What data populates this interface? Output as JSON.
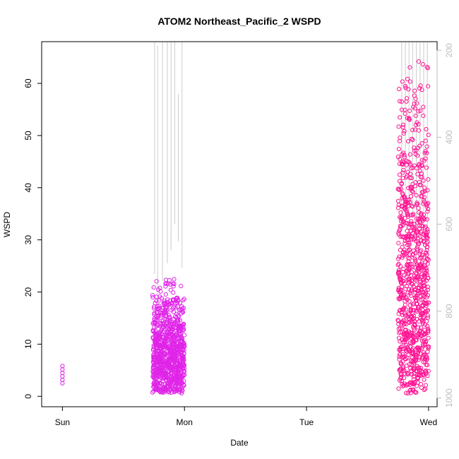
{
  "chart_data": {
    "type": "scatter",
    "title": "ATOM2 Northeast_Pacific_2 WSPD",
    "xlabel": "Date",
    "ylabel": "WSPD",
    "x_ticks": [
      "Sun",
      "Mon",
      "Tue",
      "Wed"
    ],
    "x_tick_values_days": [
      0,
      1,
      2,
      3
    ],
    "xlim_days": [
      -0.17,
      3.07
    ],
    "y_ticks": [
      0,
      10,
      20,
      30,
      40,
      50,
      60
    ],
    "ylim": [
      -2,
      68
    ],
    "right_axis": {
      "label": "",
      "ticks": [
        200,
        400,
        600,
        800,
        1000
      ],
      "lim": [
        1020,
        180
      ],
      "reversed": true,
      "color": "#bdbdbd"
    },
    "grid": false,
    "legend": "none",
    "series": [
      {
        "name": "",
        "color": "#e024e8",
        "marker": "open-circle",
        "clusters": [
          {
            "x_day": 0.0,
            "y_min": 2.5,
            "y_max": 5.8
          },
          {
            "x_day_range": [
              0.74,
              1.0
            ],
            "y_min": 0.6,
            "y_max": 23.5
          }
        ]
      },
      {
        "name": "",
        "color": "#ff1493",
        "marker": "open-circle",
        "clusters": [
          {
            "x_day_range": [
              2.75,
              3.0
            ],
            "y_min": 0.6,
            "y_max": 65.5
          }
        ]
      },
      {
        "name": "",
        "color": "#cccccc",
        "marker": "line",
        "axis": "right",
        "segments": [
          {
            "x_day": 0.755,
            "top": 170,
            "bottom": 715
          },
          {
            "x_day": 0.78,
            "top": 190,
            "bottom": 760
          },
          {
            "x_day": 0.82,
            "top": 175,
            "bottom": 730
          },
          {
            "x_day": 0.86,
            "top": 170,
            "bottom": 690
          },
          {
            "x_day": 0.89,
            "top": 170,
            "bottom": 660
          },
          {
            "x_day": 0.92,
            "top": 175,
            "bottom": 600
          },
          {
            "x_day": 0.95,
            "top": 300,
            "bottom": 640
          },
          {
            "x_day": 0.98,
            "top": 170,
            "bottom": 700
          },
          {
            "x_day": 2.78,
            "top": 170,
            "bottom": 600
          },
          {
            "x_day": 2.81,
            "top": 170,
            "bottom": 560
          },
          {
            "x_day": 2.84,
            "top": 170,
            "bottom": 650
          },
          {
            "x_day": 2.87,
            "top": 170,
            "bottom": 580
          },
          {
            "x_day": 2.9,
            "top": 170,
            "bottom": 700
          },
          {
            "x_day": 2.93,
            "top": 170,
            "bottom": 600
          },
          {
            "x_day": 2.96,
            "top": 170,
            "bottom": 650
          },
          {
            "x_day": 2.99,
            "top": 170,
            "bottom": 610
          }
        ]
      }
    ]
  }
}
